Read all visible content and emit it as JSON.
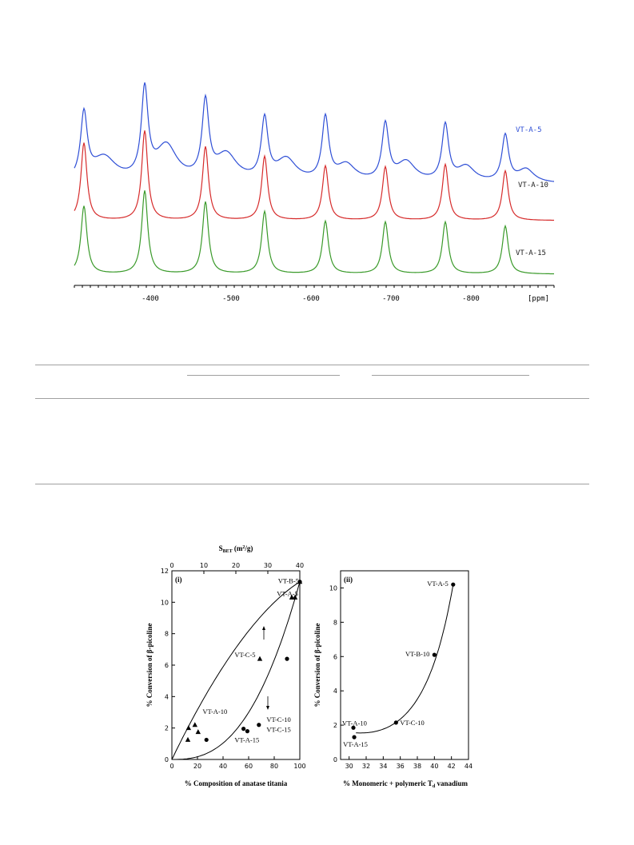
{
  "nmr": {
    "x_ticks": [
      "-400",
      "-500",
      "-600",
      "-700",
      "-800"
    ],
    "unit_label": "[ppm]",
    "colors": {
      "a5": "#2f4fd6",
      "a10": "#d62b2b",
      "a15": "#3a9a2a"
    },
    "spectra": [
      {
        "name": "VT-A-5",
        "color": "#2f4fd6"
      },
      {
        "name": "VT-A-10",
        "color": "#222222"
      },
      {
        "name": "VT-A-15",
        "color": "#222222"
      }
    ]
  },
  "chart_data": [
    {
      "type": "scatter",
      "panel": "(i)",
      "xlabel": "% Composition of anatase titania",
      "x2label": "S_BET (m²/g)",
      "ylabel": "% Conversion of β-picoline",
      "xlim": [
        0,
        100
      ],
      "x2lim": [
        0,
        40
      ],
      "ylim": [
        0,
        12
      ],
      "x_ticks": [
        0,
        20,
        40,
        60,
        80,
        100
      ],
      "x2_ticks": [
        0,
        10,
        20,
        30,
        40
      ],
      "y_ticks": [
        0,
        2,
        4,
        6,
        8,
        10,
        12
      ],
      "series": [
        {
          "marker": "triangle",
          "axis": "x2",
          "points": [
            [
              5,
              1.25
            ],
            [
              5.2,
              2.0
            ],
            [
              7.2,
              2.2
            ],
            [
              8.2,
              1.75
            ],
            [
              27.5,
              6.4
            ],
            [
              37.5,
              10.3
            ],
            [
              38.5,
              10.3
            ],
            [
              40,
              11.3
            ]
          ]
        },
        {
          "marker": "circle",
          "axis": "x",
          "points": [
            [
              27,
              1.25
            ],
            [
              56,
              1.95
            ],
            [
              59,
              1.8
            ],
            [
              68,
              2.2
            ],
            [
              90,
              6.4
            ],
            [
              100,
              11.3
            ]
          ]
        }
      ],
      "labels": [
        {
          "text": "VT-B-5",
          "x": 83,
          "y": 11.2
        },
        {
          "text": "VT-A-5",
          "x": 82,
          "y": 10.4
        },
        {
          "text": "VT-C-5",
          "x": 49,
          "y": 6.5
        },
        {
          "text": "VT-A-10",
          "x": 24,
          "y": 2.9
        },
        {
          "text": "VT-C-10",
          "x": 74,
          "y": 2.4
        },
        {
          "text": "VT-C-15",
          "x": 74,
          "y": 1.75
        },
        {
          "text": "VT-A-15",
          "x": 49,
          "y": 1.1
        }
      ]
    },
    {
      "type": "scatter",
      "panel": "(ii)",
      "xlabel": "% Monomeric + polymeric T_d vanadium",
      "ylabel": "% Conversion of β-picoline",
      "xlim": [
        29,
        44
      ],
      "ylim": [
        0,
        11
      ],
      "x_ticks": [
        30,
        32,
        34,
        36,
        38,
        40,
        42,
        44
      ],
      "y_ticks": [
        0,
        2,
        4,
        6,
        8,
        10
      ],
      "points": [
        {
          "name": "VT-A-10",
          "x": 30.5,
          "y": 1.85
        },
        {
          "name": "VT-A-15",
          "x": 30.6,
          "y": 1.3
        },
        {
          "name": "VT-C-10",
          "x": 35.5,
          "y": 2.15
        },
        {
          "name": "VT-B-10",
          "x": 40,
          "y": 6.1
        },
        {
          "name": "VT-A-5",
          "x": 42.2,
          "y": 10.2
        }
      ]
    }
  ]
}
